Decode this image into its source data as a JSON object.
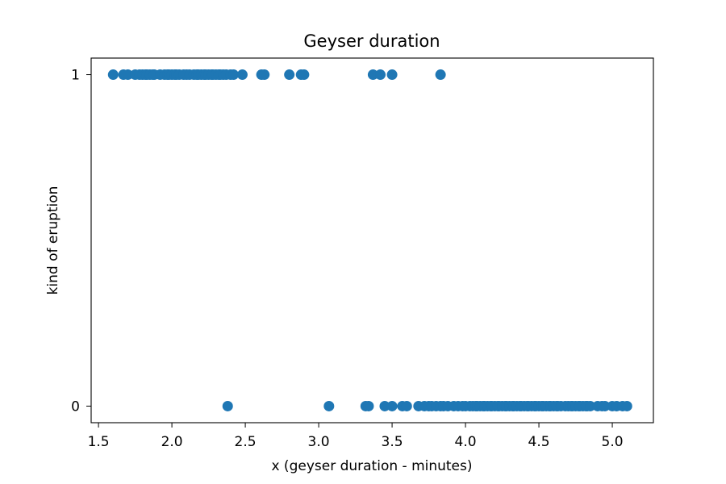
{
  "chart_data": {
    "type": "scatter",
    "title": "Geyser duration",
    "xlabel": "x (geyser duration - minutes)",
    "ylabel": "kind of eruption",
    "xlim": [
      1.45,
      5.28
    ],
    "ylim": [
      -0.05,
      1.05
    ],
    "x_ticks": [
      {
        "value": 1.5,
        "label": "1.5"
      },
      {
        "value": 2.0,
        "label": "2.0"
      },
      {
        "value": 2.5,
        "label": "2.5"
      },
      {
        "value": 3.0,
        "label": "3.0"
      },
      {
        "value": 3.5,
        "label": "3.5"
      },
      {
        "value": 4.0,
        "label": "4.0"
      },
      {
        "value": 4.5,
        "label": "4.5"
      },
      {
        "value": 5.0,
        "label": "5.0"
      }
    ],
    "y_ticks": [
      {
        "value": 0,
        "label": "0"
      },
      {
        "value": 1,
        "label": "1"
      }
    ],
    "grid": false,
    "marker_color": "#1f77b4",
    "points": [
      [
        1.6,
        1
      ],
      [
        1.67,
        1
      ],
      [
        1.7,
        1
      ],
      [
        1.75,
        1
      ],
      [
        1.78,
        1
      ],
      [
        1.8,
        1
      ],
      [
        1.82,
        1
      ],
      [
        1.83,
        1
      ],
      [
        1.85,
        1
      ],
      [
        1.87,
        1
      ],
      [
        1.88,
        1
      ],
      [
        1.92,
        1
      ],
      [
        1.95,
        1
      ],
      [
        1.97,
        1
      ],
      [
        1.98,
        1
      ],
      [
        2.0,
        1
      ],
      [
        2.02,
        1
      ],
      [
        2.03,
        1
      ],
      [
        2.05,
        1
      ],
      [
        2.08,
        1
      ],
      [
        2.1,
        1
      ],
      [
        2.12,
        1
      ],
      [
        2.15,
        1
      ],
      [
        2.17,
        1
      ],
      [
        2.18,
        1
      ],
      [
        2.2,
        1
      ],
      [
        2.22,
        1
      ],
      [
        2.23,
        1
      ],
      [
        2.25,
        1
      ],
      [
        2.27,
        1
      ],
      [
        2.28,
        1
      ],
      [
        2.3,
        1
      ],
      [
        2.32,
        1
      ],
      [
        2.33,
        1
      ],
      [
        2.35,
        1
      ],
      [
        2.37,
        1
      ],
      [
        2.4,
        1
      ],
      [
        2.42,
        1
      ],
      [
        2.48,
        1
      ],
      [
        2.61,
        1
      ],
      [
        2.63,
        1
      ],
      [
        2.8,
        1
      ],
      [
        2.88,
        1
      ],
      [
        2.9,
        1
      ],
      [
        3.37,
        1
      ],
      [
        3.42,
        1
      ],
      [
        3.5,
        1
      ],
      [
        3.83,
        1
      ],
      [
        2.38,
        0
      ],
      [
        3.07,
        0
      ],
      [
        3.32,
        0
      ],
      [
        3.34,
        0
      ],
      [
        3.45,
        0
      ],
      [
        3.5,
        0
      ],
      [
        3.57,
        0
      ],
      [
        3.6,
        0
      ],
      [
        3.68,
        0
      ],
      [
        3.72,
        0
      ],
      [
        3.75,
        0
      ],
      [
        3.77,
        0
      ],
      [
        3.8,
        0
      ],
      [
        3.83,
        0
      ],
      [
        3.85,
        0
      ],
      [
        3.88,
        0
      ],
      [
        3.92,
        0
      ],
      [
        3.95,
        0
      ],
      [
        3.98,
        0
      ],
      [
        4.0,
        0
      ],
      [
        4.03,
        0
      ],
      [
        4.05,
        0
      ],
      [
        4.07,
        0
      ],
      [
        4.08,
        0
      ],
      [
        4.1,
        0
      ],
      [
        4.12,
        0
      ],
      [
        4.13,
        0
      ],
      [
        4.15,
        0
      ],
      [
        4.17,
        0
      ],
      [
        4.18,
        0
      ],
      [
        4.2,
        0
      ],
      [
        4.22,
        0
      ],
      [
        4.23,
        0
      ],
      [
        4.25,
        0
      ],
      [
        4.27,
        0
      ],
      [
        4.28,
        0
      ],
      [
        4.3,
        0
      ],
      [
        4.32,
        0
      ],
      [
        4.33,
        0
      ],
      [
        4.35,
        0
      ],
      [
        4.37,
        0
      ],
      [
        4.38,
        0
      ],
      [
        4.4,
        0
      ],
      [
        4.42,
        0
      ],
      [
        4.43,
        0
      ],
      [
        4.45,
        0
      ],
      [
        4.47,
        0
      ],
      [
        4.48,
        0
      ],
      [
        4.5,
        0
      ],
      [
        4.52,
        0
      ],
      [
        4.53,
        0
      ],
      [
        4.55,
        0
      ],
      [
        4.57,
        0
      ],
      [
        4.58,
        0
      ],
      [
        4.6,
        0
      ],
      [
        4.62,
        0
      ],
      [
        4.63,
        0
      ],
      [
        4.65,
        0
      ],
      [
        4.68,
        0
      ],
      [
        4.7,
        0
      ],
      [
        4.72,
        0
      ],
      [
        4.73,
        0
      ],
      [
        4.75,
        0
      ],
      [
        4.77,
        0
      ],
      [
        4.78,
        0
      ],
      [
        4.8,
        0
      ],
      [
        4.82,
        0
      ],
      [
        4.83,
        0
      ],
      [
        4.85,
        0
      ],
      [
        4.9,
        0
      ],
      [
        4.93,
        0
      ],
      [
        4.95,
        0
      ],
      [
        5.0,
        0
      ],
      [
        5.03,
        0
      ],
      [
        5.07,
        0
      ],
      [
        5.1,
        0
      ]
    ]
  }
}
